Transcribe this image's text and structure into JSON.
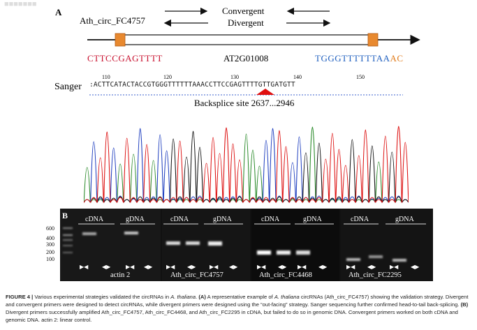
{
  "panel_a": {
    "label": "A",
    "circ_name": "Ath_circ_FC4757",
    "convergent": "Convergent",
    "divergent": "Divergent",
    "seq_left": "CTTCCGAGTTTT",
    "gene": "AT2G01008",
    "seq_right_main": "TGGGTTTTTTAA",
    "seq_right_tail": "AC",
    "sanger_label": "Sanger",
    "sanger_positions": [
      "110",
      "120",
      "130",
      "140",
      "150"
    ],
    "sanger_sequence": ":ACTTCATACTACCGTGGGTTTTTTAAACCTTCCGAGTTTTGTTGATGTT",
    "backsplice": "Backsplice site 2637...2946"
  },
  "panel_b": {
    "label": "B",
    "ladder": [
      "600",
      "400",
      "300",
      "200",
      "100"
    ],
    "groups": [
      {
        "cdna": "cDNA",
        "gdna": "gDNA",
        "name": "actin 2"
      },
      {
        "cdna": "cDNA",
        "gdna": "gDNA",
        "name": "Ath_circ_FC4757"
      },
      {
        "cdna": "cDNA",
        "gdna": "gDNA",
        "name": "Ath_circ_FC4468"
      },
      {
        "cdna": "cDNA",
        "gdna": "gDNA",
        "name": "Ath_circ_FC2295"
      }
    ]
  },
  "caption": {
    "fig": "FIGURE 4 |",
    "t1": " Various experimental strategies validated the circRNAs in ",
    "sp1": "A. thaliana",
    "t2": ". ",
    "a": "(A)",
    "t3": " A representative example of ",
    "sp2": "A. thaliana",
    "t4": " circRNAs (Ath_circ_FC4757) showing the validation strategy. Divergent and convergent primers were designed to detect circRNAs, while divergent primers were designed using the “out-facing” strategy. Sanger sequencing further confirmed head-to-tail back-splicing. ",
    "b": "(B)",
    "t5": " Divergent primers successfully amplified Ath_circ_FC4757, Ath_circ_FC4468, and Ath_circ_FC2295 in cDNA, but failed to do so in genomic DNA. Convergent primers worked on both cDNA and genomic DNA. actin 2: linear control."
  }
}
